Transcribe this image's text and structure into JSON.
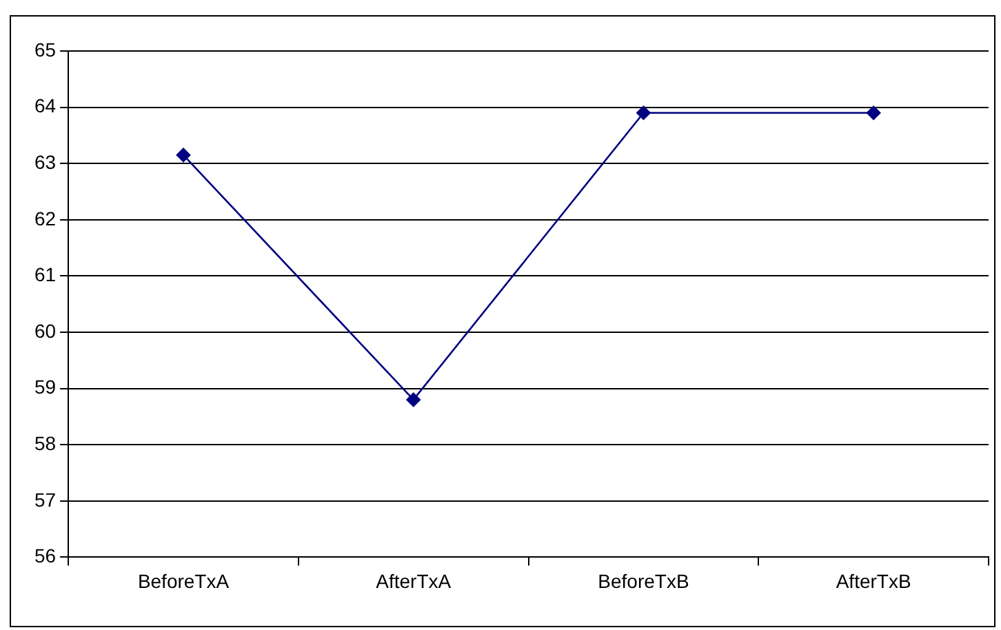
{
  "chart_data": {
    "type": "line",
    "categories": [
      "BeforeTxA",
      "AfterTxA",
      "BeforeTxB",
      "AfterTxB"
    ],
    "series": [
      {
        "color": "#000080",
        "values": [
          63.15,
          58.8,
          63.9,
          63.9
        ]
      }
    ],
    "ylim": [
      56,
      65
    ],
    "yticks": [
      56,
      57,
      58,
      59,
      60,
      61,
      62,
      63,
      64,
      65
    ],
    "grid": "y",
    "legend": false,
    "marker": "diamond",
    "line_style": "solid"
  }
}
